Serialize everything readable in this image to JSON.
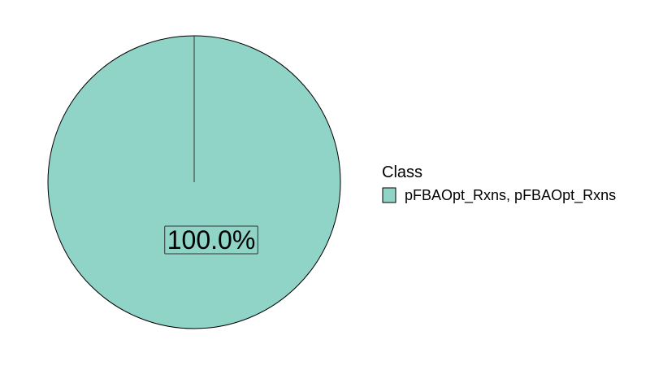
{
  "chart_data": {
    "type": "pie",
    "title": "",
    "legend_title": "Class",
    "legend_position": "right",
    "categories": [
      "pFBAOpt_Rxns, pFBAOpt_Rxns"
    ],
    "values": [
      100.0
    ],
    "labels": [
      "100.0%"
    ],
    "colors": [
      "#8fd4c7"
    ]
  }
}
